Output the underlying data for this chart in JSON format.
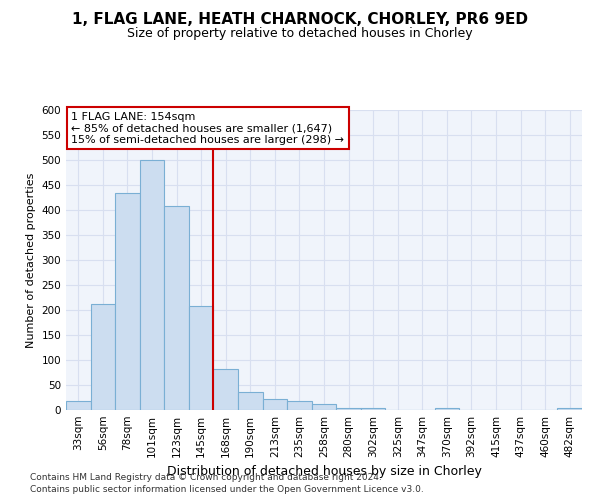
{
  "title1": "1, FLAG LANE, HEATH CHARNOCK, CHORLEY, PR6 9ED",
  "title2": "Size of property relative to detached houses in Chorley",
  "xlabel": "Distribution of detached houses by size in Chorley",
  "ylabel": "Number of detached properties",
  "categories": [
    "33sqm",
    "56sqm",
    "78sqm",
    "101sqm",
    "123sqm",
    "145sqm",
    "168sqm",
    "190sqm",
    "213sqm",
    "235sqm",
    "258sqm",
    "280sqm",
    "302sqm",
    "325sqm",
    "347sqm",
    "370sqm",
    "392sqm",
    "415sqm",
    "437sqm",
    "460sqm",
    "482sqm"
  ],
  "values": [
    18,
    212,
    435,
    500,
    408,
    209,
    83,
    37,
    22,
    18,
    12,
    5,
    5,
    0,
    0,
    5,
    0,
    0,
    0,
    0,
    5
  ],
  "bar_color": "#ccddf0",
  "bar_edge_color": "#7aafd4",
  "vline_color": "#cc0000",
  "vline_pos": 5.5,
  "annotation_lines": [
    "1 FLAG LANE: 154sqm",
    "← 85% of detached houses are smaller (1,647)",
    "15% of semi-detached houses are larger (298) →"
  ],
  "annotation_box_facecolor": "#ffffff",
  "annotation_box_edgecolor": "#cc0000",
  "ylim": [
    0,
    600
  ],
  "yticks": [
    0,
    50,
    100,
    150,
    200,
    250,
    300,
    350,
    400,
    450,
    500,
    550,
    600
  ],
  "bg_color": "#ffffff",
  "plot_bg_color": "#f0f4fb",
  "grid_color": "#d8dff0",
  "title1_fontsize": 11,
  "title2_fontsize": 9,
  "xlabel_fontsize": 9,
  "ylabel_fontsize": 8,
  "tick_fontsize": 7.5,
  "footer1": "Contains HM Land Registry data © Crown copyright and database right 2024.",
  "footer2": "Contains public sector information licensed under the Open Government Licence v3.0.",
  "footer_fontsize": 6.5
}
